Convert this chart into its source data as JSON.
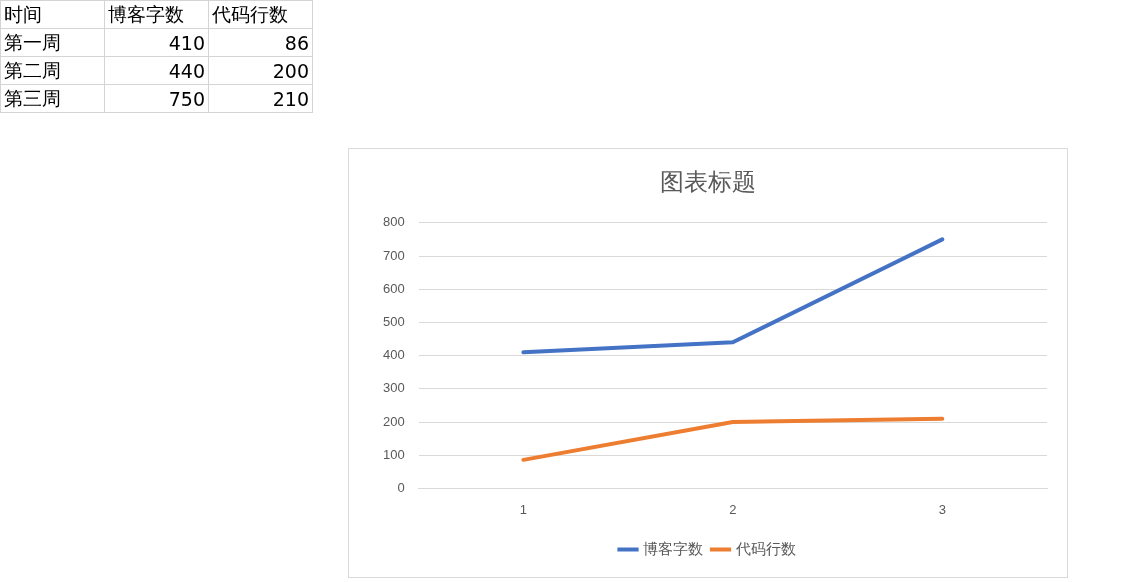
{
  "chart_data": [
    {
      "type": "heatmap",
      "ylabel": "时间",
      "categories": [
        "博客字数",
        "代码行数"
      ],
      "y_categories": [
        "第一周",
        "第二周",
        "第三周"
      ],
      "cells": [
        [
          410,
          86
        ],
        [
          440,
          200
        ],
        [
          750,
          210
        ]
      ],
      "data_labels": true
    },
    {
      "type": "line",
      "title": "图表标题",
      "categories": [
        "1",
        "2",
        "3"
      ],
      "series": [
        {
          "name": "博客字数",
          "color": "#4472c4",
          "values": [
            410,
            440,
            750
          ]
        },
        {
          "name": "代码行数",
          "color": "#ed7d31",
          "values": [
            86,
            200,
            210
          ]
        }
      ],
      "ylim": [
        0,
        800
      ],
      "yticks": [
        0,
        100,
        200,
        300,
        400,
        500,
        600,
        700,
        800
      ],
      "grid": "y",
      "legend": "bottom",
      "marker": "none",
      "line_style": "solid"
    }
  ]
}
